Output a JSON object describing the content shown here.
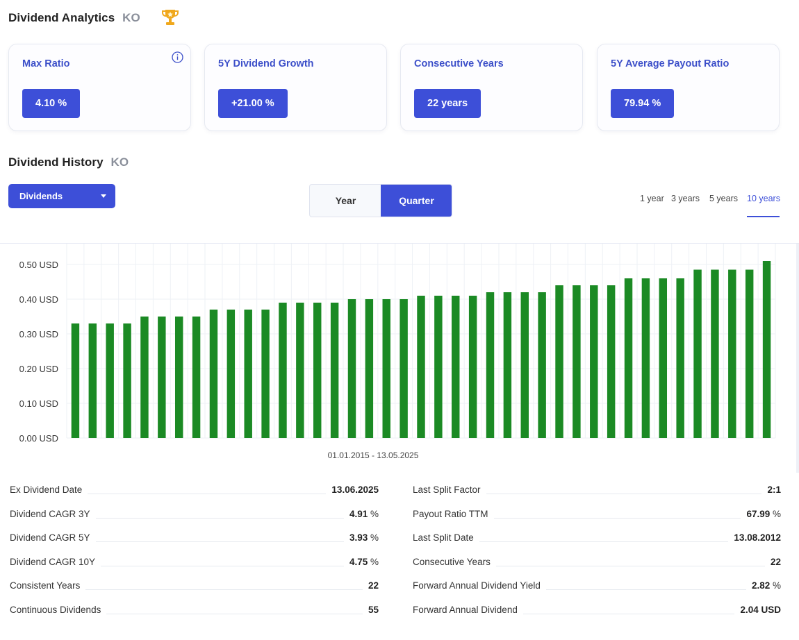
{
  "analytics": {
    "title": "Dividend Analytics",
    "ticker": "KO",
    "trophy_icon": "trophy-icon",
    "cards": [
      {
        "label": "Max Ratio",
        "value": "4.10 %",
        "has_info": true
      },
      {
        "label": "5Y Dividend Growth",
        "value": "+21.00 %"
      },
      {
        "label": "Consecutive Years",
        "value": "22 years"
      },
      {
        "label": "5Y Average Payout Ratio",
        "value": "79.94 %"
      }
    ]
  },
  "history": {
    "title": "Dividend History",
    "ticker": "KO",
    "dropdown_value": "Dividends",
    "period_toggle": {
      "year": "Year",
      "quarter": "Quarter",
      "selected": "Quarter"
    },
    "ranges": [
      "1 year",
      "3 years",
      "5 years",
      "10 years"
    ],
    "selected_range": "10 years",
    "date_range": "01.01.2015 - 13.05.2025"
  },
  "chart_data": {
    "type": "bar",
    "ylim": [
      0,
      0.5
    ],
    "yticks": [
      "0.00 USD",
      "0.10 USD",
      "0.20 USD",
      "0.30 USD",
      "0.40 USD",
      "0.50 USD"
    ],
    "ytick_values": [
      0,
      0.1,
      0.2,
      0.3,
      0.4,
      0.5
    ],
    "grid": true,
    "bar_color": "#1b8a24",
    "values": [
      0.33,
      0.33,
      0.33,
      0.33,
      0.35,
      0.35,
      0.35,
      0.35,
      0.37,
      0.37,
      0.37,
      0.37,
      0.39,
      0.39,
      0.39,
      0.39,
      0.4,
      0.4,
      0.4,
      0.4,
      0.41,
      0.41,
      0.41,
      0.41,
      0.42,
      0.42,
      0.42,
      0.42,
      0.44,
      0.44,
      0.44,
      0.44,
      0.46,
      0.46,
      0.46,
      0.46,
      0.485,
      0.485,
      0.485,
      0.485,
      0.51
    ]
  },
  "stats": {
    "left": [
      {
        "label": "Ex Dividend Date",
        "value": "13.06.2025",
        "unit": ""
      },
      {
        "label": "Dividend CAGR 3Y",
        "value": "4.91",
        "unit": " %"
      },
      {
        "label": "Dividend CAGR 5Y",
        "value": "3.93",
        "unit": " %"
      },
      {
        "label": "Dividend CAGR 10Y",
        "value": "4.75",
        "unit": " %"
      },
      {
        "label": "Consistent Years",
        "value": "22",
        "unit": ""
      },
      {
        "label": "Continuous Dividends",
        "value": "55",
        "unit": ""
      }
    ],
    "right": [
      {
        "label": "Last Split Factor",
        "value": "2:1",
        "unit": ""
      },
      {
        "label": "Payout Ratio TTM",
        "value": "67.99",
        "unit": " %"
      },
      {
        "label": "Last Split Date",
        "value": "13.08.2012",
        "unit": ""
      },
      {
        "label": "Consecutive Years",
        "value": "22",
        "unit": ""
      },
      {
        "label": "Forward Annual Dividend Yield",
        "value": "2.82",
        "unit": " %"
      },
      {
        "label": "Forward Annual Dividend",
        "value": "2.04 USD",
        "unit": ""
      }
    ]
  },
  "colors": {
    "accent": "#3d4fd8",
    "card_label": "#3c4fc9",
    "bar": "#1b8a24",
    "trophy": "#f0a81c"
  }
}
